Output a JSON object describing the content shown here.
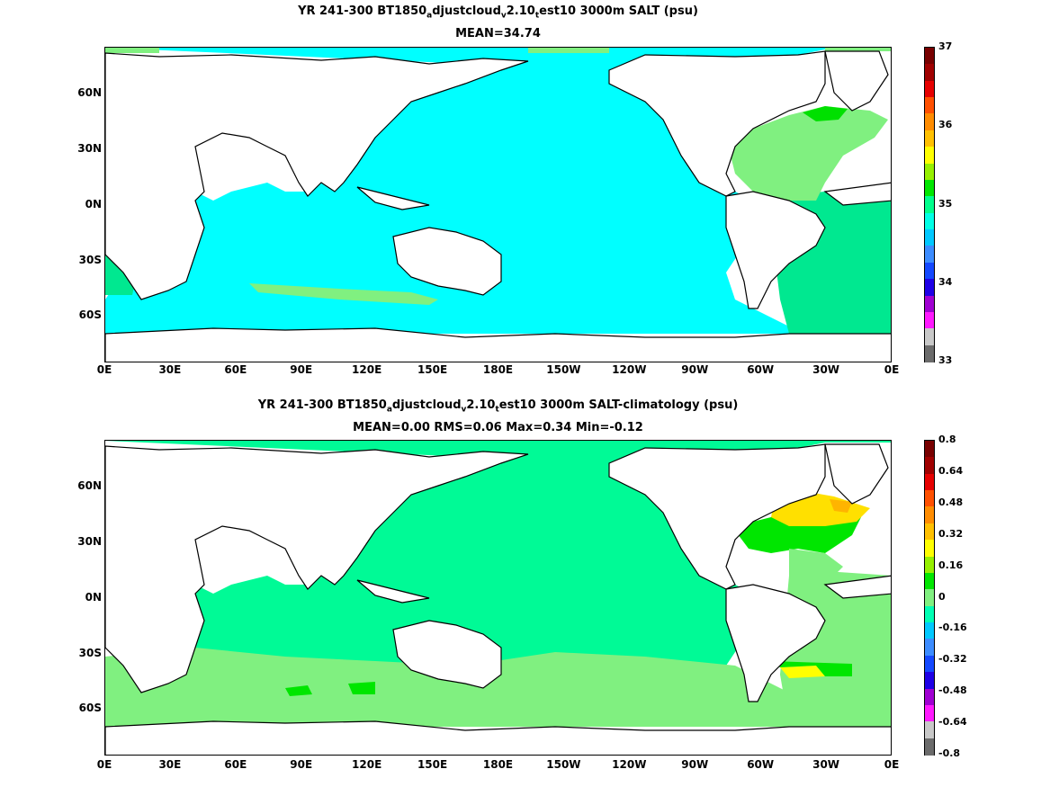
{
  "chart_data": [
    {
      "type": "heatmap",
      "title_parts": {
        "pre": "YR 241-300 BT1850",
        "sub1": "a",
        "mid": "djustcloud",
        "sub2": "v",
        "mid2": "2.10",
        "sub3": "t",
        "post": "est10 3000m SALT (psu)"
      },
      "subtitle": "MEAN=34.74",
      "x_ticks": [
        "0E",
        "30E",
        "60E",
        "90E",
        "120E",
        "150E",
        "180E",
        "150W",
        "120W",
        "90W",
        "60W",
        "30W",
        "0E"
      ],
      "y_ticks": [
        "60N",
        "30N",
        "0N",
        "30S",
        "60S"
      ],
      "y_tick_values": [
        60,
        30,
        0,
        -30,
        -60
      ],
      "xlim": [
        0,
        360
      ],
      "ylim": [
        -78,
        90
      ],
      "colorbar": {
        "labels": [
          "33",
          "34",
          "35",
          "36",
          "37"
        ],
        "label_values": [
          33,
          34,
          35,
          36,
          37
        ],
        "min": 33,
        "max": 37,
        "colors": [
          "#6b6b6b",
          "#c8c8c8",
          "#ff19ff",
          "#a000d2",
          "#1e00e6",
          "#1448ff",
          "#3c8cff",
          "#00c8ff",
          "#00ffe6",
          "#00ff8c",
          "#00e600",
          "#96f000",
          "#ffff00",
          "#ffc000",
          "#ff8c00",
          "#ff5000",
          "#e60000",
          "#a00000",
          "#780000"
        ]
      },
      "regions": [
        {
          "name": "pacific",
          "value": 34.7,
          "color": "#00ffff"
        },
        {
          "name": "indian",
          "value": 34.7,
          "color": "#00ffff"
        },
        {
          "name": "southern",
          "value": 34.7,
          "color": "#00ffff"
        },
        {
          "name": "north-atlantic",
          "value": 34.95,
          "color": "#80f080"
        },
        {
          "name": "labrador",
          "value": 35.05,
          "color": "#00e000"
        },
        {
          "name": "south-atlantic",
          "value": 34.9,
          "color": "#00e890"
        }
      ]
    },
    {
      "type": "heatmap",
      "title_parts": {
        "pre": "YR 241-300 BT1850",
        "sub1": "a",
        "mid": "djustcloud",
        "sub2": "v",
        "mid2": "2.10",
        "sub3": "t",
        "post": "est10 3000m SALT-climatology (psu)"
      },
      "subtitle": "MEAN=0.00   RMS=0.06   Max=0.34   Min=-0.12",
      "x_ticks": [
        "0E",
        "30E",
        "60E",
        "90E",
        "120E",
        "150E",
        "180E",
        "150W",
        "120W",
        "90W",
        "60W",
        "30W",
        "0E"
      ],
      "y_ticks": [
        "60N",
        "30N",
        "0N",
        "30S",
        "60S"
      ],
      "y_tick_values": [
        60,
        30,
        0,
        -30,
        -60
      ],
      "xlim": [
        0,
        360
      ],
      "ylim": [
        -78,
        90
      ],
      "colorbar": {
        "labels": [
          "0.8",
          "0.64",
          "0.48",
          "0.32",
          "0.16",
          "0",
          "-0.16",
          "-0.32",
          "-0.48",
          "-0.64",
          "-0.8"
        ],
        "label_values": [
          0.8,
          0.64,
          0.48,
          0.32,
          0.16,
          0,
          -0.16,
          -0.32,
          -0.48,
          -0.64,
          -0.8
        ],
        "min": -0.8,
        "max": 0.8,
        "colors": [
          "#6b6b6b",
          "#c8c8c8",
          "#ff19ff",
          "#a000d2",
          "#1e00e6",
          "#1448ff",
          "#3c8cff",
          "#00c8ff",
          "#00ffb4",
          "#80f080",
          "#00e600",
          "#96f000",
          "#ffff00",
          "#ffc000",
          "#ff8c00",
          "#ff5000",
          "#e60000",
          "#a00000",
          "#780000"
        ]
      },
      "regions": [
        {
          "name": "pacific",
          "value": -0.02,
          "color": "#00fa96"
        },
        {
          "name": "southern",
          "value": 0.04,
          "color": "#80f080"
        },
        {
          "name": "indian",
          "value": -0.02,
          "color": "#00fa96"
        },
        {
          "name": "north-atlantic",
          "value": 0.2,
          "color": "#00e600"
        },
        {
          "name": "subpolar-atlantic",
          "value": 0.34,
          "color": "#ffe000"
        },
        {
          "name": "south-atlantic",
          "value": 0.06,
          "color": "#80f080"
        }
      ]
    }
  ]
}
